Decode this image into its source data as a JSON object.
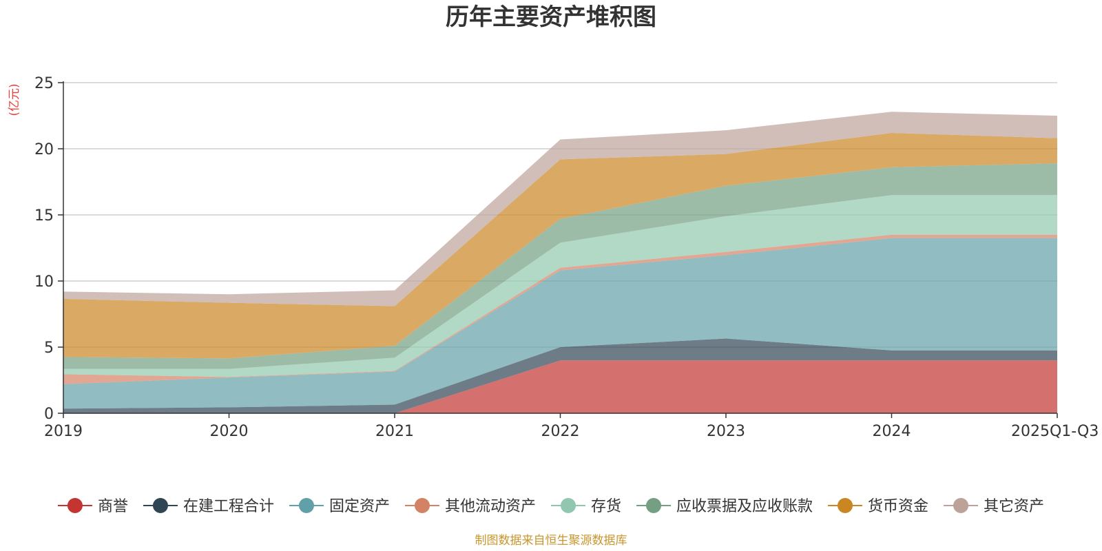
{
  "chart_data": {
    "type": "area",
    "stacked": true,
    "title": "历年主要资产堆积图",
    "unit_label": "(亿元)",
    "source": "制图数据来自恒生聚源数据库",
    "x": [
      "2019",
      "2020",
      "2021",
      "2022",
      "2023",
      "2024",
      "2025Q1-Q3"
    ],
    "ylim": [
      0,
      25
    ],
    "yticks": [
      0,
      5,
      10,
      15,
      20,
      25
    ],
    "grid": true,
    "legend_position": "bottom",
    "series": [
      {
        "name": "商誉",
        "color": "#c23531",
        "values": [
          0,
          0,
          0,
          4.0,
          4.0,
          4.0,
          4.0
        ]
      },
      {
        "name": "在建工程合计",
        "color": "#2f4554",
        "values": [
          0.35,
          0.45,
          0.65,
          1.0,
          1.65,
          0.75,
          0.75
        ]
      },
      {
        "name": "固定资产",
        "color": "#61a0a8",
        "values": [
          1.85,
          2.25,
          2.5,
          5.8,
          6.3,
          8.5,
          8.5
        ]
      },
      {
        "name": "其他流动资产",
        "color": "#d48265",
        "values": [
          0.75,
          0.05,
          0.05,
          0.2,
          0.25,
          0.25,
          0.25
        ]
      },
      {
        "name": "存货",
        "color": "#91c7ae",
        "values": [
          0.4,
          0.6,
          1.0,
          1.9,
          2.7,
          3.0,
          3.0
        ]
      },
      {
        "name": "应收票据及应收账款",
        "color": "#749f83",
        "values": [
          0.9,
          0.8,
          0.9,
          1.8,
          2.3,
          2.1,
          2.4
        ]
      },
      {
        "name": "货币资金",
        "color": "#ca8622",
        "values": [
          4.4,
          4.2,
          3.0,
          4.5,
          2.4,
          2.6,
          1.9
        ]
      },
      {
        "name": "其它资产",
        "color": "#bda29a",
        "values": [
          0.55,
          0.65,
          1.2,
          1.5,
          1.8,
          1.6,
          1.7
        ]
      }
    ]
  }
}
